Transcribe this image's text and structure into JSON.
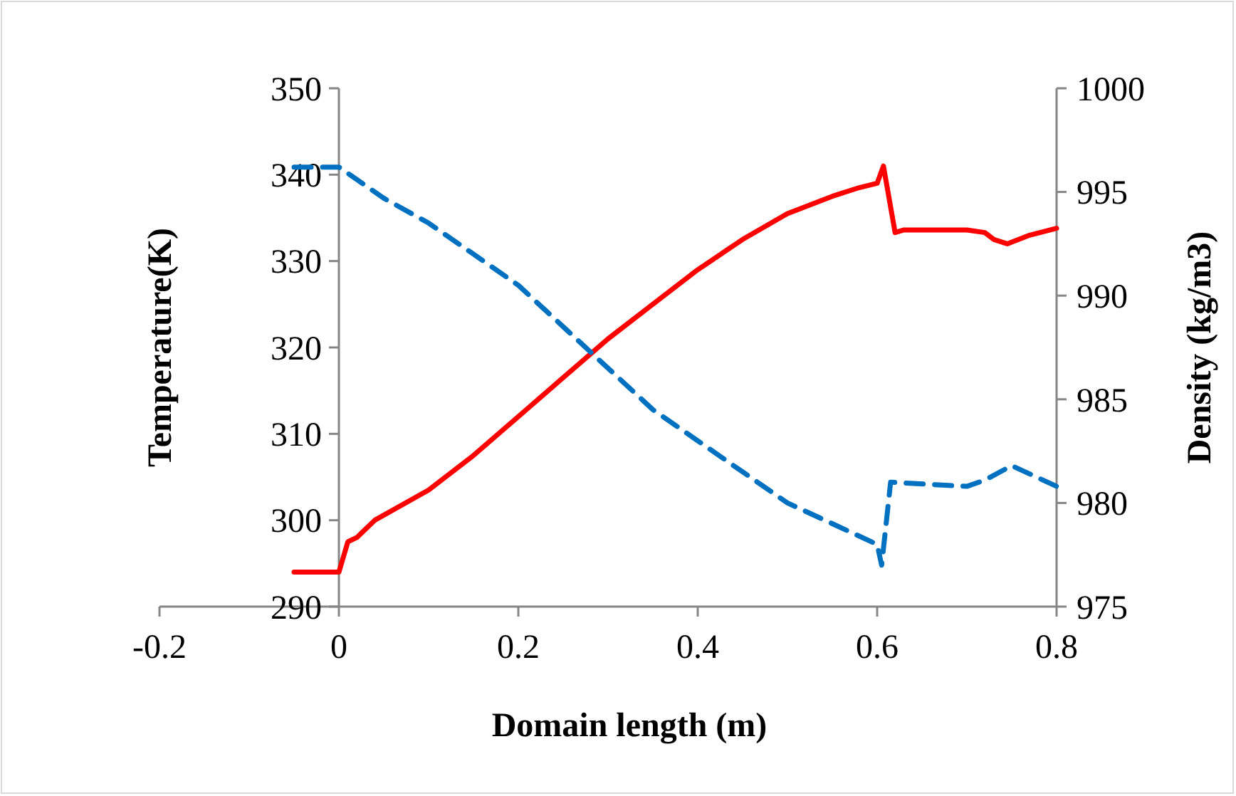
{
  "chart_data": {
    "type": "line",
    "xlabel": "Domain length (m)",
    "ylabel": "Temperature(K)",
    "y2label": "Density (kg/m3)",
    "xlim": [
      -0.2,
      0.8
    ],
    "xticks": [
      -0.2,
      0,
      0.2,
      0.4,
      0.6,
      0.8
    ],
    "ylim": [
      290,
      350
    ],
    "yticks": [
      290,
      300,
      310,
      320,
      330,
      340,
      350
    ],
    "y2lim": [
      975,
      1000
    ],
    "y2ticks": [
      975,
      980,
      985,
      990,
      995,
      1000
    ],
    "grid": false,
    "marker": "none",
    "series": [
      {
        "color": "#ff0000",
        "line_style": "solid",
        "x": [
          -0.05,
          0,
          0.01,
          0.02,
          0.04,
          0.1,
          0.15,
          0.2,
          0.25,
          0.3,
          0.35,
          0.4,
          0.45,
          0.5,
          0.55,
          0.58,
          0.6,
          0.607,
          0.62,
          0.63,
          0.7,
          0.72,
          0.73,
          0.745,
          0.77,
          0.8
        ],
        "values": [
          294,
          294,
          297.5,
          298,
          300,
          303.5,
          307.5,
          312,
          316.5,
          321,
          325,
          329,
          332.5,
          335.5,
          337.5,
          338.5,
          339,
          341,
          333.3,
          333.6,
          333.6,
          333.3,
          332.5,
          332,
          333,
          333.8
        ]
      },
      {
        "color": "#0070c0",
        "line_style": "dashed",
        "axis": "y2",
        "x": [
          -0.05,
          0,
          0.05,
          0.1,
          0.15,
          0.2,
          0.25,
          0.3,
          0.35,
          0.4,
          0.45,
          0.5,
          0.55,
          0.6,
          0.605,
          0.615,
          0.7,
          0.72,
          0.75,
          0.8
        ],
        "values": [
          996.2,
          996.2,
          994.7,
          993.5,
          992,
          990.5,
          988.5,
          986.5,
          984.5,
          983,
          981.5,
          980,
          979,
          978,
          977,
          981,
          980.8,
          981.1,
          981.8,
          980.8
        ]
      }
    ]
  }
}
